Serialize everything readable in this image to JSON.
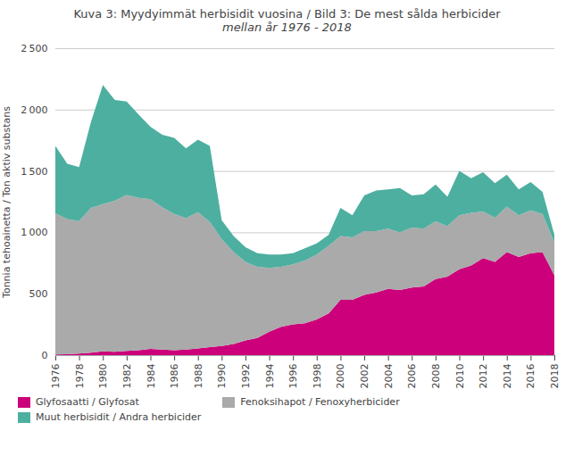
{
  "chart_data": {
    "type": "area",
    "stacked": true,
    "title": "Kuva 3: Myydyimmät  herbisidit vuosina / Bild 3: De mest sålda herbicider",
    "subtitle": "mellan år 1976 - 2018",
    "ylabel": "Tonnia tehoainetta / Ton aktiv substans",
    "x": [
      1976,
      1977,
      1978,
      1979,
      1980,
      1981,
      1982,
      1983,
      1984,
      1985,
      1986,
      1987,
      1988,
      1989,
      1990,
      1991,
      1992,
      1993,
      1994,
      1995,
      1996,
      1997,
      1998,
      1999,
      2000,
      2001,
      2002,
      2003,
      2004,
      2005,
      2006,
      2007,
      2008,
      2009,
      2010,
      2011,
      2012,
      2013,
      2014,
      2015,
      2016,
      2017,
      2018
    ],
    "series": [
      {
        "name": "Glyfosaatti / Glyfosat",
        "color": "#CC007A",
        "values": [
          5,
          8,
          12,
          20,
          30,
          28,
          35,
          40,
          50,
          45,
          40,
          45,
          55,
          65,
          75,
          90,
          120,
          140,
          190,
          230,
          250,
          260,
          290,
          340,
          450,
          450,
          490,
          510,
          540,
          530,
          550,
          560,
          620,
          640,
          700,
          730,
          790,
          760,
          840,
          800,
          830,
          840,
          650
        ]
      },
      {
        "name": "Fenoksihapot / Fenoxyherbicider",
        "color": "#AAAAAA",
        "values": [
          1150,
          1100,
          1080,
          1180,
          1200,
          1230,
          1270,
          1240,
          1220,
          1160,
          1110,
          1070,
          1110,
          1020,
          870,
          750,
          640,
          580,
          520,
          490,
          490,
          510,
          530,
          550,
          520,
          510,
          520,
          500,
          490,
          470,
          490,
          470,
          470,
          410,
          440,
          430,
          380,
          360,
          370,
          340,
          350,
          310,
          270
        ]
      },
      {
        "name": "Muut herbisidit / Andra herbicider",
        "color": "#4DAFA0",
        "values": [
          550,
          450,
          440,
          700,
          970,
          820,
          760,
          680,
          590,
          590,
          620,
          570,
          590,
          620,
          155,
          130,
          120,
          110,
          110,
          100,
          90,
          100,
          90,
          90,
          230,
          180,
          290,
          330,
          320,
          360,
          260,
          280,
          300,
          240,
          360,
          280,
          320,
          280,
          260,
          210,
          230,
          180,
          60
        ]
      }
    ],
    "xlim": [
      1976,
      2018
    ],
    "xticks": [
      1976,
      1978,
      1980,
      1982,
      1984,
      1986,
      1988,
      1990,
      1992,
      1994,
      1996,
      1998,
      2000,
      2002,
      2004,
      2006,
      2008,
      2010,
      2012,
      2014,
      2016,
      2018
    ],
    "ylim": [
      0,
      2500
    ],
    "yticks": [
      0,
      500,
      {
        "value": 1000,
        "label": "1 000"
      },
      {
        "value": 1500,
        "label": "1 500"
      },
      {
        "value": 2000,
        "label": "2 000"
      },
      {
        "value": 2500,
        "label": "2 500"
      }
    ],
    "grid": true,
    "legend": "bottom"
  }
}
